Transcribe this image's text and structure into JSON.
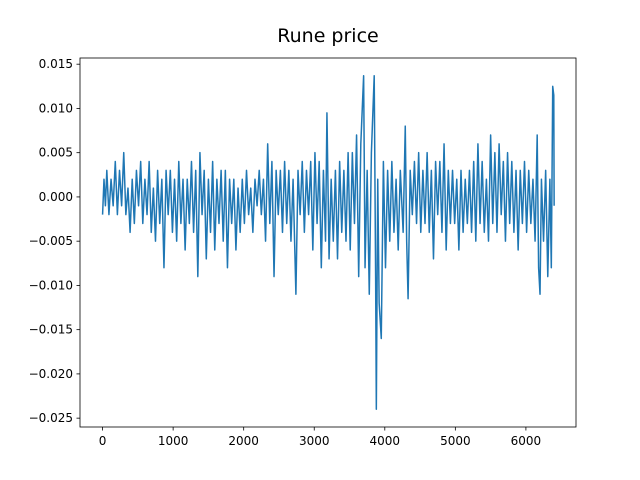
{
  "chart_data": {
    "type": "line",
    "title": "Rune price",
    "color": "#1f77b4",
    "x": [
      0,
      20,
      40,
      60,
      90,
      120,
      150,
      180,
      210,
      240,
      270,
      300,
      330,
      360,
      390,
      420,
      450,
      480,
      510,
      540,
      570,
      600,
      630,
      660,
      690,
      720,
      750,
      780,
      810,
      840,
      870,
      900,
      930,
      960,
      990,
      1020,
      1050,
      1080,
      1110,
      1140,
      1170,
      1200,
      1230,
      1260,
      1290,
      1320,
      1350,
      1380,
      1410,
      1440,
      1470,
      1500,
      1530,
      1560,
      1590,
      1620,
      1650,
      1680,
      1710,
      1740,
      1770,
      1800,
      1830,
      1860,
      1890,
      1920,
      1950,
      1980,
      2010,
      2040,
      2070,
      2100,
      2130,
      2160,
      2190,
      2220,
      2250,
      2280,
      2310,
      2340,
      2370,
      2400,
      2430,
      2460,
      2490,
      2520,
      2550,
      2580,
      2610,
      2640,
      2670,
      2700,
      2740,
      2770,
      2800,
      2830,
      2860,
      2890,
      2920,
      2950,
      2980,
      3010,
      3040,
      3070,
      3100,
      3130,
      3160,
      3180,
      3210,
      3240,
      3270,
      3300,
      3330,
      3360,
      3390,
      3420,
      3450,
      3480,
      3510,
      3540,
      3570,
      3600,
      3630,
      3660,
      3700,
      3720,
      3750,
      3780,
      3810,
      3850,
      3870,
      3880,
      3900,
      3920,
      3950,
      3980,
      4010,
      4040,
      4070,
      4100,
      4130,
      4160,
      4190,
      4220,
      4260,
      4290,
      4310,
      4330,
      4360,
      4390,
      4420,
      4450,
      4480,
      4510,
      4540,
      4570,
      4600,
      4630,
      4660,
      4690,
      4720,
      4750,
      4780,
      4810,
      4840,
      4870,
      4900,
      4930,
      4960,
      4990,
      5020,
      5050,
      5080,
      5110,
      5140,
      5170,
      5200,
      5230,
      5260,
      5290,
      5320,
      5350,
      5380,
      5410,
      5440,
      5470,
      5500,
      5530,
      5560,
      5590,
      5620,
      5650,
      5680,
      5710,
      5740,
      5770,
      5800,
      5830,
      5860,
      5890,
      5920,
      5950,
      5980,
      6010,
      6040,
      6070,
      6100,
      6130,
      6160,
      6180,
      6200,
      6220,
      6250,
      6280,
      6310,
      6340,
      6360,
      6380,
      6395,
      6400
    ],
    "values": [
      -0.002,
      0.002,
      -0.001,
      0.003,
      -0.002,
      0.002,
      -0.001,
      0.004,
      -0.002,
      0.003,
      -0.001,
      0.005,
      -0.002,
      0.001,
      -0.004,
      0.002,
      -0.003,
      0.003,
      -0.001,
      0.004,
      -0.003,
      0.002,
      -0.002,
      0.004,
      -0.004,
      0.001,
      -0.005,
      0.003,
      -0.003,
      0.002,
      -0.008,
      0.003,
      -0.002,
      0.003,
      -0.004,
      0.002,
      -0.005,
      0.004,
      -0.003,
      0.002,
      -0.006,
      0.002,
      -0.003,
      0.004,
      -0.004,
      0.003,
      -0.009,
      0.005,
      -0.002,
      0.003,
      -0.007,
      0.002,
      -0.004,
      0.004,
      -0.006,
      0.002,
      -0.003,
      0.003,
      -0.005,
      0.003,
      -0.008,
      0.002,
      -0.003,
      0.002,
      -0.006,
      0.001,
      -0.004,
      0.002,
      -0.003,
      0.003,
      -0.002,
      0.001,
      -0.004,
      0.002,
      -0.001,
      0.003,
      -0.002,
      0.002,
      -0.005,
      0.006,
      -0.003,
      0.004,
      -0.009,
      0.003,
      -0.002,
      0.003,
      -0.004,
      0.004,
      -0.003,
      0.003,
      -0.005,
      0.002,
      -0.011,
      0.003,
      -0.002,
      0.004,
      -0.004,
      0.003,
      -0.002,
      0.004,
      -0.006,
      0.005,
      -0.003,
      0.004,
      -0.008,
      0.003,
      -0.005,
      0.0095,
      -0.007,
      0.002,
      -0.005,
      0.003,
      -0.007,
      0.004,
      -0.004,
      0.003,
      -0.005,
      0.005,
      -0.006,
      0.005,
      -0.003,
      0.007,
      -0.009,
      0.006,
      0.0137,
      -0.008,
      0.003,
      -0.011,
      0.005,
      0.0137,
      -0.009,
      -0.024,
      0.002,
      -0.012,
      -0.016,
      0.004,
      -0.008,
      0.003,
      -0.005,
      0.004,
      -0.004,
      0.002,
      -0.006,
      0.003,
      -0.004,
      0.008,
      -0.005,
      -0.0115,
      0.003,
      -0.002,
      0.004,
      -0.003,
      0.005,
      -0.004,
      0.003,
      -0.003,
      0.005,
      -0.004,
      0.003,
      -0.007,
      0.004,
      -0.002,
      0.004,
      -0.004,
      0.006,
      -0.006,
      0.003,
      -0.003,
      0.003,
      -0.003,
      0.002,
      -0.006,
      0.003,
      -0.004,
      0.002,
      -0.003,
      0.003,
      -0.004,
      0.004,
      -0.005,
      0.006,
      -0.003,
      0.004,
      -0.004,
      0.002,
      -0.005,
      0.007,
      -0.003,
      0.005,
      -0.004,
      0.006,
      -0.002,
      0.004,
      -0.005,
      0.005,
      -0.003,
      0.004,
      -0.004,
      0.003,
      -0.006,
      0.003,
      -0.003,
      0.004,
      -0.004,
      0.003,
      -0.003,
      0.002,
      -0.005,
      0.007,
      -0.008,
      -0.011,
      0.002,
      -0.005,
      0.003,
      -0.009,
      0.002,
      -0.008,
      0.0125,
      0.0115,
      -0.001
    ],
    "xlim": [
      -320,
      6710
    ],
    "ylim": [
      -0.026,
      0.0157
    ],
    "xticks": [
      0,
      1000,
      2000,
      3000,
      4000,
      5000,
      6000
    ],
    "yticks": [
      {
        "value": 0.015,
        "label": "0.015"
      },
      {
        "value": 0.01,
        "label": "0.010"
      },
      {
        "value": 0.005,
        "label": "0.005"
      },
      {
        "value": 0,
        "label": "0.000"
      },
      {
        "value": -0.005,
        "label": "−0.005"
      },
      {
        "value": -0.01,
        "label": "−0.010"
      },
      {
        "value": -0.015,
        "label": "−0.015"
      },
      {
        "value": -0.02,
        "label": "−0.020"
      },
      {
        "value": -0.025,
        "label": "−0.025"
      }
    ]
  }
}
